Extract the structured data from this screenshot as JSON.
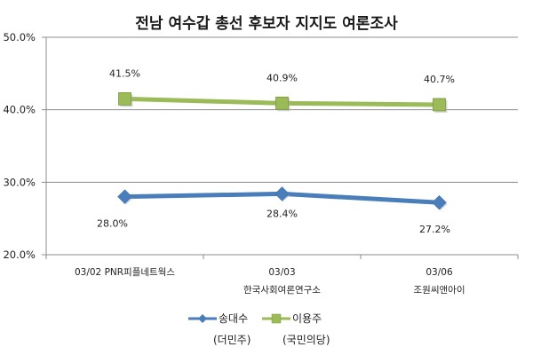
{
  "chart_data": {
    "type": "line",
    "title": "전남 여수갑 총선 후보자 지지도 여론조사",
    "categories": [
      "03/02 PNR피플네트웍스",
      "03/03\n한국사회여론연구소",
      "03/06\n조원씨앤아이"
    ],
    "category_lines": [
      [
        "03/02 PNR피플네트웍스",
        ""
      ],
      [
        "03/03",
        "한국사회여론연구소"
      ],
      [
        "03/06",
        "조원씨앤아이"
      ]
    ],
    "series": [
      {
        "name": "송대수",
        "party": "(더민주)",
        "color": "#4a7ebb",
        "marker": "diamond",
        "values": [
          28.0,
          28.4,
          27.2
        ],
        "labels": [
          "28.0%",
          "28.4%",
          "27.2%"
        ]
      },
      {
        "name": "이용주",
        "party": "(국민의당)",
        "color": "#9bbb59",
        "marker": "square",
        "values": [
          41.5,
          40.9,
          40.7
        ],
        "labels": [
          "41.5%",
          "40.9%",
          "40.7%"
        ]
      }
    ],
    "xlabel": "",
    "ylabel": "",
    "ylim": [
      20,
      50
    ],
    "yticks": [
      "50.0%",
      "40.0%",
      "30.0%",
      "20.0%"
    ],
    "grid": true,
    "legend_position": "bottom"
  }
}
